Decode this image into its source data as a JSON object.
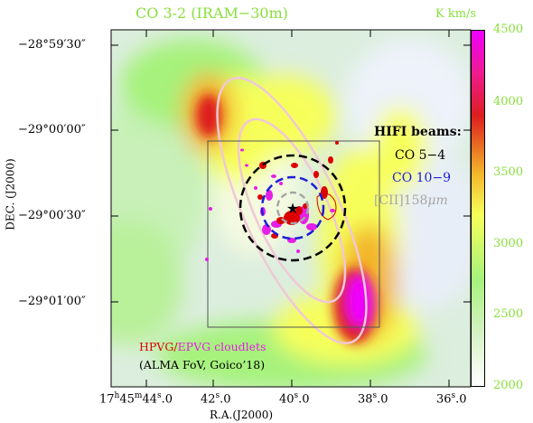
{
  "figure": {
    "title": "CO 3-2 (IRAM−30m)",
    "unit": "K km/s",
    "ylabel": "DEC. (J2000)",
    "xlabel": "R.A.(J2000)"
  },
  "ra_ticks": [
    {
      "h": "17",
      "m": "45",
      "s": "44",
      "frac": ".0",
      "prefix": true
    },
    {
      "s": "42",
      "frac": ".0"
    },
    {
      "s": "40",
      "frac": ".0"
    },
    {
      "s": "38",
      "frac": ".0"
    },
    {
      "s": "36",
      "frac": ".0"
    }
  ],
  "dec_ticks": [
    "−28°59′30″",
    "−29°00′00″",
    "−29°00′30″",
    "−29°01′00″"
  ],
  "colorbar": {
    "ticks": [
      "4500",
      "4000",
      "3500",
      "3000",
      "2500",
      "2000"
    ],
    "range": [
      2000,
      4500
    ],
    "colors": [
      "#ffffff",
      "#d8f2c8",
      "#a6f27c",
      "#f6ff5a",
      "#f3b52a",
      "#dd1e1e",
      "#ee1b8f",
      "#ef00ff"
    ]
  },
  "legend": {
    "header": "HIFI beams:",
    "beam1": "CO 5−4",
    "beam2": "CO 10−9",
    "beam3_prefix": "[CII]158",
    "beam3_unit": "μm"
  },
  "annotations": {
    "cloudlets": "HPVG/EPVG cloudlets",
    "alma": "(ALMA FoV, Goico’18)"
  },
  "colors": {
    "beam_co54": "#000000",
    "beam_co109": "#1d1dd8",
    "beam_cii": "#a6a6a6",
    "cloudlets_red": "#dd0000",
    "cloudlets_magenta": "#e61ee6",
    "ellipse": "#f0c8d6",
    "fov_box": "#555555"
  }
}
